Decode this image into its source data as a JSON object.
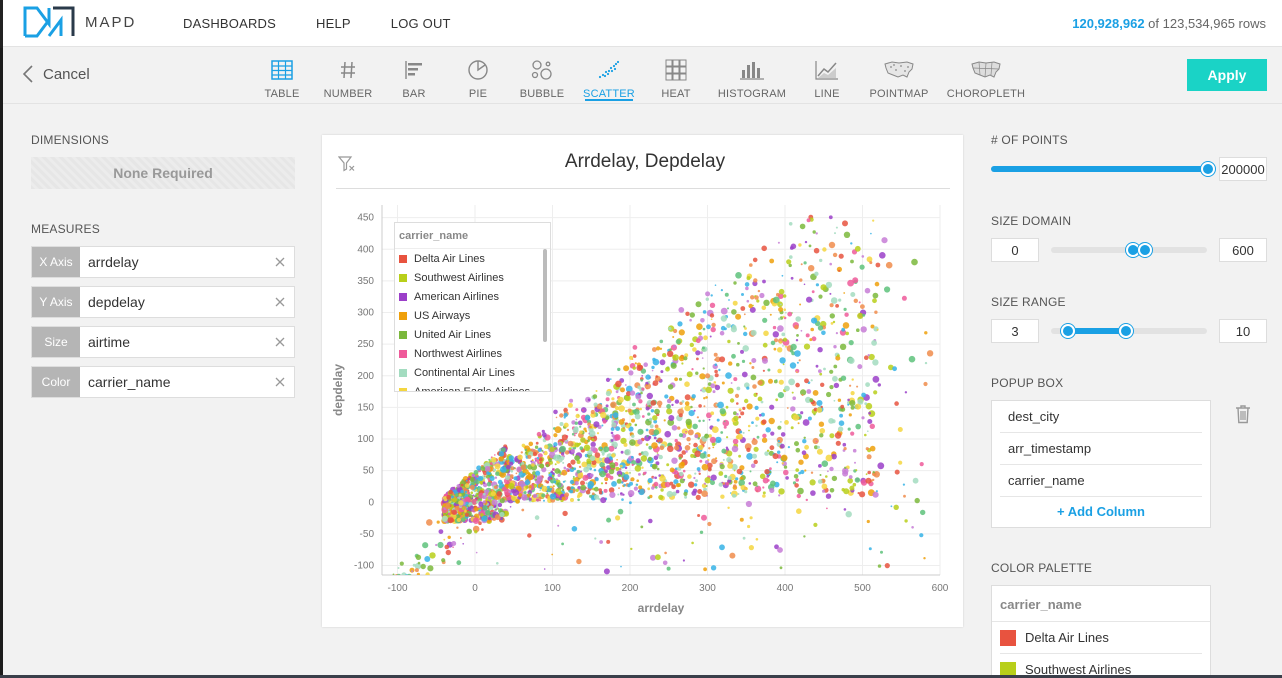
{
  "brand": {
    "name": "MAPD"
  },
  "nav": {
    "items": [
      "DASHBOARDS",
      "HELP",
      "LOG OUT"
    ]
  },
  "rows": {
    "filtered": "120,928,962",
    "sep": "of",
    "total": "123,534,965 rows"
  },
  "toolbar": {
    "cancel_label": "Cancel",
    "apply_label": "Apply",
    "chart_types": [
      {
        "label": "TABLE",
        "icon": "table-icon",
        "active": false
      },
      {
        "label": "NUMBER",
        "icon": "hash-icon",
        "active": false
      },
      {
        "label": "BAR",
        "icon": "bar-icon",
        "active": false
      },
      {
        "label": "PIE",
        "icon": "pie-icon",
        "active": false
      },
      {
        "label": "BUBBLE",
        "icon": "bubble-icon",
        "active": false
      },
      {
        "label": "SCATTER",
        "icon": "scatter-icon",
        "active": true
      },
      {
        "label": "HEAT",
        "icon": "heat-icon",
        "active": false
      },
      {
        "label": "HISTOGRAM",
        "icon": "histogram-icon",
        "active": false
      },
      {
        "label": "LINE",
        "icon": "line-icon",
        "active": false
      },
      {
        "label": "POINTMAP",
        "icon": "pointmap-icon",
        "active": false
      },
      {
        "label": "CHOROPLETH",
        "icon": "choropleth-icon",
        "active": false
      }
    ]
  },
  "left": {
    "dimensions_label": "DIMENSIONS",
    "none_required": "None Required",
    "measures_label": "MEASURES",
    "measures": [
      {
        "tag": "X Axis",
        "value": "arrdelay"
      },
      {
        "tag": "Y Axis",
        "value": "depdelay"
      },
      {
        "tag": "Size",
        "value": "airtime"
      },
      {
        "tag": "Color",
        "value": "carrier_name"
      }
    ]
  },
  "chart": {
    "title": "Arrdelay,  Depdelay",
    "legend_title": "carrier_name",
    "legend": [
      {
        "name": "Delta Air Lines",
        "color": "#e8533f"
      },
      {
        "name": "Southwest Airlines",
        "color": "#b8cf1a"
      },
      {
        "name": "American Airlines",
        "color": "#9b3fc9"
      },
      {
        "name": "US Airways",
        "color": "#efa00b"
      },
      {
        "name": "United Air Lines",
        "color": "#7bb83c"
      },
      {
        "name": "Northwest Airlines",
        "color": "#ef5a9a"
      },
      {
        "name": "Continental Air Lines",
        "color": "#a3dcc0"
      },
      {
        "name": "American Eagle Airlines",
        "color": "#f4d640"
      }
    ]
  },
  "chart_data": {
    "type": "scatter",
    "title": "Arrdelay,  Depdelay",
    "xlabel": "arrdelay",
    "ylabel": "depdelay",
    "xlim": [
      -120,
      600
    ],
    "ylim": [
      -115,
      470
    ],
    "xticks": [
      -100,
      0,
      100,
      200,
      300,
      400,
      500,
      600
    ],
    "yticks": [
      -100,
      -50,
      0,
      50,
      100,
      150,
      200,
      250,
      300,
      350,
      400,
      450
    ],
    "grid": true,
    "legend_position": "top-left",
    "series_names": [
      "Delta Air Lines",
      "Southwest Airlines",
      "American Airlines",
      "US Airways",
      "United Air Lines",
      "Northwest Airlines",
      "Continental Air Lines",
      "American Eagle Airlines"
    ]
  },
  "right": {
    "points_label": "# OF POINTS",
    "points_value": "200000",
    "points_fraction": 1.0,
    "size_domain_label": "SIZE DOMAIN",
    "size_domain_min": "0",
    "size_domain_max": "600",
    "size_range_label": "SIZE RANGE",
    "size_range_min": "3",
    "size_range_max": "10",
    "popup_label": "POPUP BOX",
    "popup_items": [
      "dest_city",
      "arr_timestamp",
      "carrier_name"
    ],
    "add_column": "+ Add Column",
    "palette_label": "COLOR PALETTE",
    "palette_title": "carrier_name",
    "palette_items": [
      {
        "name": "Delta Air Lines",
        "color": "#e8533f"
      },
      {
        "name": "Southwest Airlines",
        "color": "#b8cf1a"
      }
    ]
  }
}
